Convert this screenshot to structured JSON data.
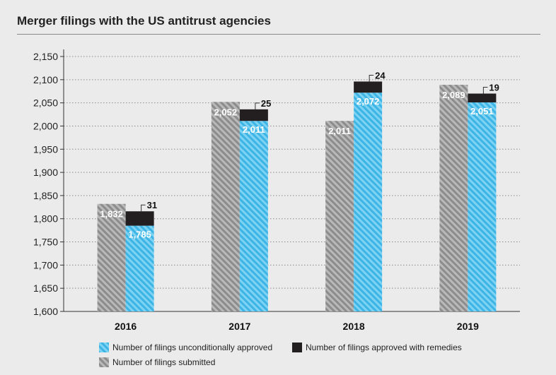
{
  "colors": {
    "submitted": "#8c8c8c",
    "submitted_stripe": "#b9b9b9",
    "unconditional": "#3cb4e5",
    "unconditional_stripe": "#7fd3f2",
    "remedies": "#231f20",
    "background": "#ebebeb",
    "grid": "#8c8c8c"
  },
  "chart_data": {
    "type": "bar",
    "title": "Merger filings with the US antitrust agencies",
    "categories": [
      "2016",
      "2017",
      "2018",
      "2019"
    ],
    "ylim": [
      1600,
      2150
    ],
    "yticks": [
      "1,600",
      "1,650",
      "1,700",
      "1,750",
      "1,800",
      "1,850",
      "1,900",
      "1,950",
      "2,000",
      "2,050",
      "2,100",
      "2,150"
    ],
    "grid": true,
    "legend_position": "bottom",
    "series": [
      {
        "name": "Number of filings submitted",
        "values": [
          1832,
          2052,
          2011,
          2089
        ],
        "labels": [
          "1,832",
          "2,052",
          "2,011",
          "2,089"
        ]
      },
      {
        "name": "Number of filings unconditionally approved",
        "values": [
          1785,
          2011,
          2072,
          2051
        ],
        "labels": [
          "1,785",
          "2,011",
          "2,072",
          "2,051"
        ]
      },
      {
        "name": "Number of filings approved with remedies",
        "values": [
          31,
          25,
          24,
          19
        ],
        "labels": [
          "31",
          "25",
          "24",
          "19"
        ]
      }
    ]
  }
}
